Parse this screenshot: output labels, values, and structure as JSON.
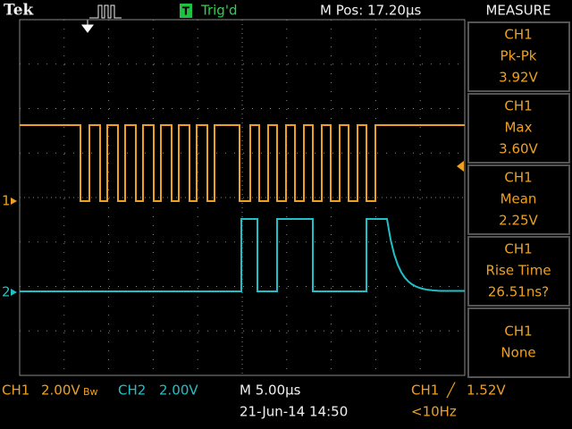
{
  "header": {
    "brand": "Tek",
    "trigger_icon": "T",
    "trigger_status": "Trig'd",
    "position": "M Pos: 17.20µs"
  },
  "measure": {
    "title": "MEASURE",
    "items": [
      {
        "source": "CH1",
        "label": "Pk-Pk",
        "value": "3.92V"
      },
      {
        "source": "CH1",
        "label": "Max",
        "value": "3.60V"
      },
      {
        "source": "CH1",
        "label": "Mean",
        "value": "2.25V"
      },
      {
        "source": "CH1",
        "label": "Rise Time",
        "value": "26.51ns?"
      },
      {
        "source": "CH1",
        "label": "None"
      }
    ]
  },
  "markers": {
    "ch1": "1",
    "ch2": "2"
  },
  "footer": {
    "ch1": "CH1",
    "ch1_scale": "2.00V",
    "ch1_bw": "Bw",
    "ch2": "CH2",
    "ch2_scale": "2.00V",
    "timebase": "M 5.00µs",
    "datetime": "21-Jun-14 14:50",
    "trigger_source": "CH1",
    "trigger_slope": "╱",
    "trigger_level": "1.52V",
    "frequency": "<10Hz"
  }
}
